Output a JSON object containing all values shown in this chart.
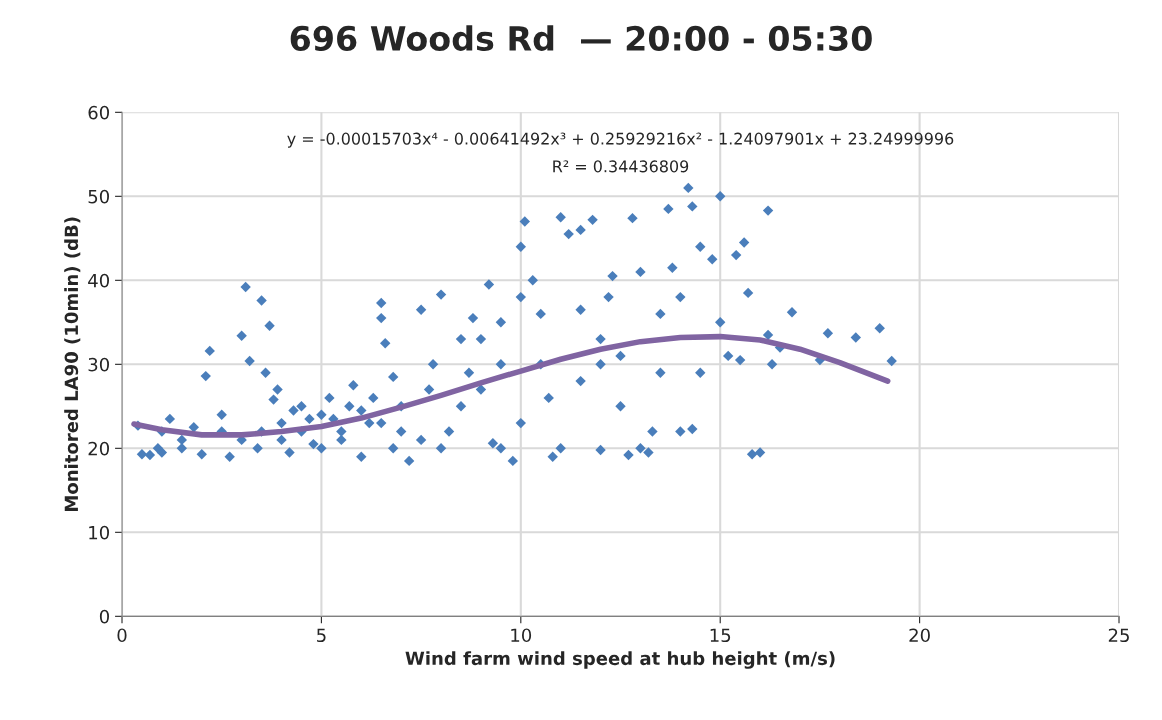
{
  "chart_data": {
    "type": "scatter",
    "title": "696 Woods Rd  — 20:00 - 05:30",
    "xlabel": "Wind farm wind speed at hub height (m/s)",
    "ylabel": "Monitored LA90 (10min) (dB)",
    "annotations": [
      "y = -0.00015703x⁴ - 0.00641492x³ + 0.25929216x² - 1.24097901x + 23.24999996",
      "R² = 0.34436809"
    ],
    "xlim": [
      0,
      25
    ],
    "xticks": [
      0,
      5,
      10,
      15,
      20,
      25
    ],
    "ylim": [
      0,
      60
    ],
    "yticks": [
      0,
      10,
      20,
      30,
      40,
      50,
      60
    ],
    "grid": true,
    "series": [
      {
        "color": "#4a7ebb",
        "marker": "diamond",
        "x": [
          0.4,
          0.5,
          0.7,
          0.9,
          1.0,
          1.2,
          1.5,
          1.8,
          2.0,
          2.1,
          2.2,
          2.5,
          2.7,
          3.0,
          3.1,
          3.2,
          3.4,
          3.5,
          3.6,
          3.7,
          3.9,
          4.0,
          4.2,
          4.5,
          4.8,
          5.0,
          5.2,
          5.5,
          5.8,
          6.0,
          6.2,
          6.5,
          6.5,
          6.6,
          6.8,
          7.0,
          7.2,
          7.5,
          7.8,
          8.0,
          8.2,
          8.5,
          8.8,
          9.0,
          9.2,
          9.5,
          9.8,
          10.0,
          10.1,
          10.3,
          10.5,
          10.7,
          10.8,
          11.0,
          11.2,
          11.5,
          11.8,
          12.0,
          12.2,
          12.5,
          12.8,
          13.0,
          13.2,
          13.5,
          13.7,
          14.0,
          14.2,
          14.3,
          14.5,
          14.8,
          15.0,
          15.2,
          15.4,
          15.6,
          15.7,
          15.8,
          16.0,
          16.2,
          16.2,
          16.5,
          16.8,
          17.5,
          17.7,
          18.4,
          19.0,
          19.3,
          14,
          13,
          12,
          11.5,
          10.5,
          9.5,
          9,
          8.5,
          8,
          7.5,
          7,
          6.5,
          6,
          5.5,
          5,
          4.5,
          4,
          3.5,
          3,
          2.5,
          1.5,
          1,
          12.5,
          13.5,
          14.5,
          15.5,
          16.3,
          11,
          12,
          12.7,
          13.3,
          14.3,
          10,
          9.3,
          8.7,
          7.7,
          6.8,
          6.3,
          5.7,
          5.3,
          4.7,
          4.3,
          3.8,
          11.5,
          12.3,
          13.8,
          15,
          9.5,
          10
        ],
        "values": [
          22.7,
          19.3,
          19.2,
          20,
          22,
          23.5,
          21,
          22.5,
          19.3,
          28.6,
          31.6,
          24,
          19,
          33.4,
          39.2,
          30.4,
          20,
          37.6,
          29,
          34.6,
          27,
          23,
          19.5,
          25,
          20.5,
          24,
          26,
          21,
          27.5,
          19,
          23,
          37.3,
          35.5,
          32.5,
          28.5,
          25,
          18.5,
          36.5,
          30,
          38.3,
          22,
          33,
          35.5,
          27,
          39.5,
          20,
          18.5,
          44,
          47,
          40,
          36,
          26,
          19,
          47.5,
          45.5,
          46,
          47.2,
          33,
          38,
          25,
          47.4,
          41,
          19.5,
          36,
          48.5,
          38,
          51,
          48.8,
          44,
          42.5,
          50,
          31,
          43,
          44.5,
          38.5,
          19.3,
          19.5,
          48.3,
          33.5,
          32,
          36.2,
          30.5,
          33.7,
          33.2,
          34.3,
          30.4,
          22,
          20,
          30,
          28,
          30,
          30,
          33,
          25,
          20,
          21,
          22,
          23,
          24.5,
          22,
          20,
          22,
          21,
          22,
          21,
          22,
          20,
          19.5,
          31,
          29,
          29,
          30.5,
          30,
          20,
          19.8,
          19.2,
          22,
          22.3,
          23,
          20.6,
          29,
          27,
          20,
          26,
          25,
          23.5,
          23.5,
          24.5,
          25.8,
          36.5,
          40.5,
          41.5,
          35,
          35,
          38
        ]
      },
      {
        "type": "line",
        "color": "#8064a2",
        "x": [
          0.3,
          1,
          2,
          3,
          4,
          5,
          6,
          7,
          8,
          9,
          10,
          11,
          12,
          13,
          14,
          15,
          16,
          17,
          18,
          19.2
        ],
        "values": [
          22.9,
          22.2,
          21.6,
          21.6,
          22.0,
          22.6,
          23.6,
          24.9,
          26.3,
          27.8,
          29.2,
          30.6,
          31.8,
          32.7,
          33.2,
          33.3,
          32.9,
          31.8,
          30.2,
          28.0
        ]
      }
    ]
  }
}
